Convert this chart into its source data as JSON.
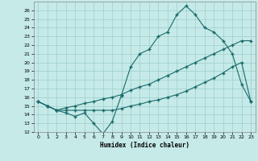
{
  "xlabel": "Humidex (Indice chaleur)",
  "background_color": "#c5eae8",
  "grid_color": "#9ecece",
  "line_color": "#1a6b6b",
  "xlim": [
    -0.5,
    23.5
  ],
  "ylim": [
    12,
    27
  ],
  "yticks": [
    12,
    13,
    14,
    15,
    16,
    17,
    18,
    19,
    20,
    21,
    22,
    23,
    24,
    25,
    26
  ],
  "xticks": [
    0,
    1,
    2,
    3,
    4,
    5,
    6,
    7,
    8,
    9,
    10,
    11,
    12,
    13,
    14,
    15,
    16,
    17,
    18,
    19,
    20,
    21,
    22,
    23
  ],
  "line1_x": [
    0,
    1,
    2,
    3,
    4,
    5,
    6,
    7,
    8,
    9,
    10,
    11,
    12,
    13,
    14,
    15,
    16,
    17,
    18,
    19,
    20,
    21,
    22,
    23
  ],
  "line1_y": [
    15.5,
    15.0,
    14.5,
    14.2,
    13.8,
    14.2,
    13.0,
    11.8,
    13.2,
    16.2,
    19.5,
    21.0,
    21.5,
    23.0,
    23.5,
    25.5,
    26.5,
    25.5,
    24.0,
    23.5,
    22.5,
    21.0,
    17.5,
    15.5
  ],
  "line2_x": [
    0,
    2,
    23
  ],
  "line2_y": [
    15.5,
    14.5,
    22.5
  ],
  "line3_x": [
    0,
    2,
    23
  ],
  "line3_y": [
    15.5,
    14.5,
    15.5
  ],
  "line2_full_x": [
    0,
    1,
    2,
    3,
    4,
    5,
    6,
    7,
    8,
    9,
    10,
    11,
    12,
    13,
    14,
    15,
    16,
    17,
    18,
    19,
    20,
    21,
    22,
    23
  ],
  "line2_full_y": [
    15.5,
    15.0,
    14.5,
    14.8,
    15.0,
    15.3,
    15.5,
    15.8,
    16.0,
    16.3,
    16.8,
    17.2,
    17.5,
    18.0,
    18.5,
    19.0,
    19.5,
    20.0,
    20.5,
    21.0,
    21.5,
    22.0,
    22.5,
    22.5
  ],
  "line3_full_x": [
    0,
    1,
    2,
    3,
    4,
    5,
    6,
    7,
    8,
    9,
    10,
    11,
    12,
    13,
    14,
    15,
    16,
    17,
    18,
    19,
    20,
    21,
    22,
    23
  ],
  "line3_full_y": [
    15.5,
    15.0,
    14.5,
    14.5,
    14.5,
    14.5,
    14.5,
    14.5,
    14.5,
    14.7,
    15.0,
    15.2,
    15.5,
    15.7,
    16.0,
    16.3,
    16.7,
    17.2,
    17.7,
    18.2,
    18.8,
    19.5,
    20.0,
    15.5
  ]
}
